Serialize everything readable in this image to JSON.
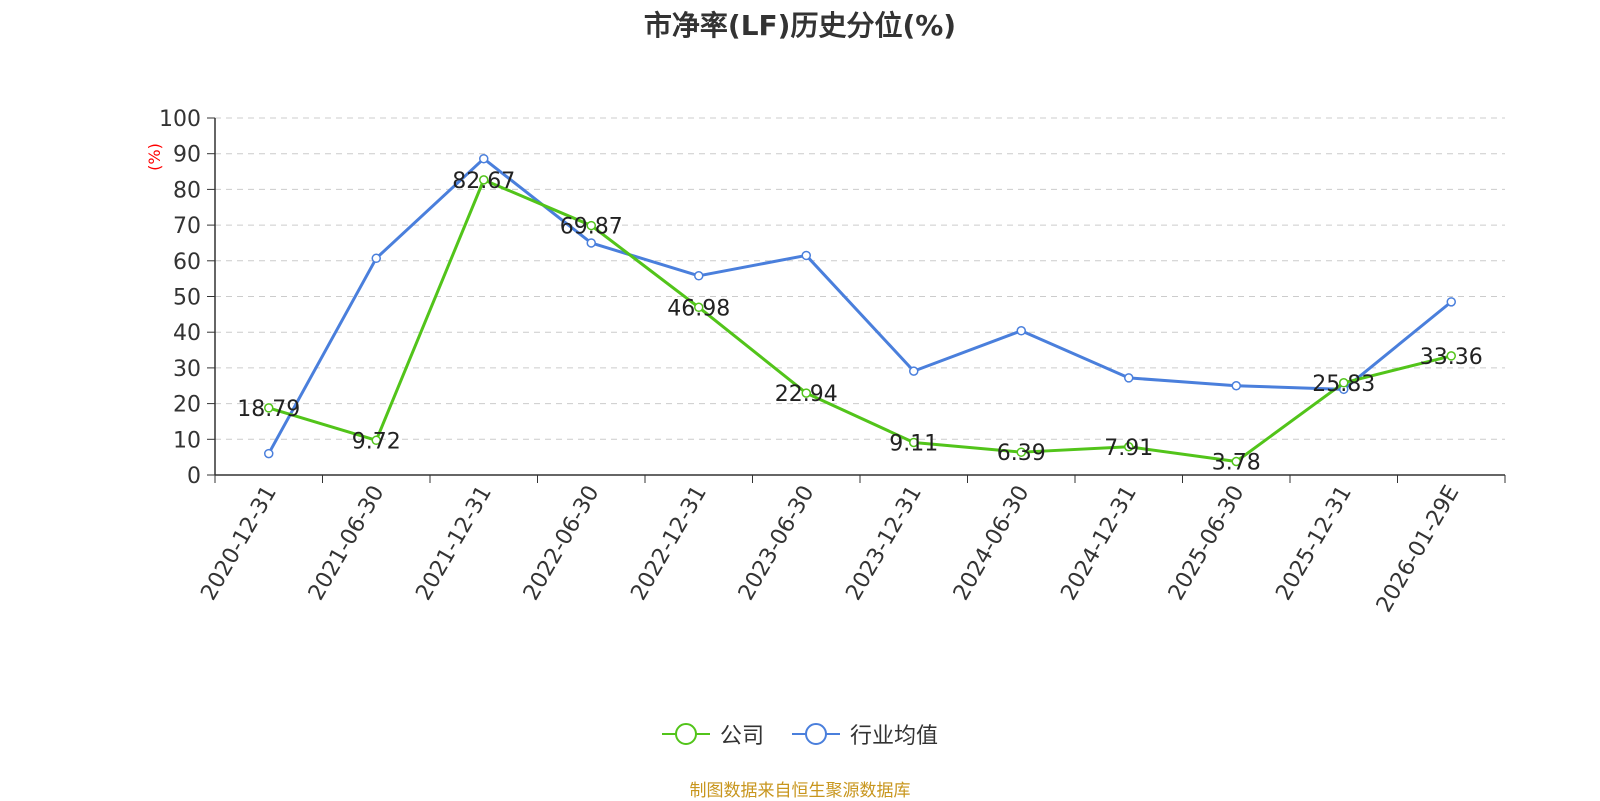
{
  "chart_data": {
    "type": "line",
    "title": "市净率(LF)历史分位(%)",
    "ylabel": "(%)",
    "xlabel": "",
    "ylim": [
      0,
      100
    ],
    "yticks": [
      0,
      10,
      20,
      30,
      40,
      50,
      60,
      70,
      80,
      90,
      100
    ],
    "grid": true,
    "legend_position": "bottom",
    "categories": [
      "2020-12-31",
      "2021-06-30",
      "2021-12-31",
      "2022-06-30",
      "2022-12-31",
      "2023-06-30",
      "2023-12-31",
      "2024-06-30",
      "2024-12-31",
      "2025-06-30",
      "2025-12-31",
      "2026-01-29E"
    ],
    "series": [
      {
        "name": "公司",
        "color": "#52c41a",
        "show_labels": true,
        "values": [
          18.79,
          9.72,
          82.67,
          69.87,
          46.98,
          22.94,
          9.11,
          6.39,
          7.91,
          3.78,
          25.83,
          33.36
        ]
      },
      {
        "name": "行业均值",
        "color": "#4a7fdc",
        "show_labels": false,
        "values": [
          6.0,
          60.7,
          88.6,
          65.0,
          55.8,
          61.5,
          29.1,
          40.4,
          27.2,
          25.0,
          24.0,
          48.5
        ]
      }
    ]
  },
  "source_note": "制图数据来自恒生聚源数据库",
  "colors": {
    "ylabel": "#ff0000",
    "source_note": "#c8961e",
    "axis": "#333333",
    "grid": "#cccccc"
  }
}
